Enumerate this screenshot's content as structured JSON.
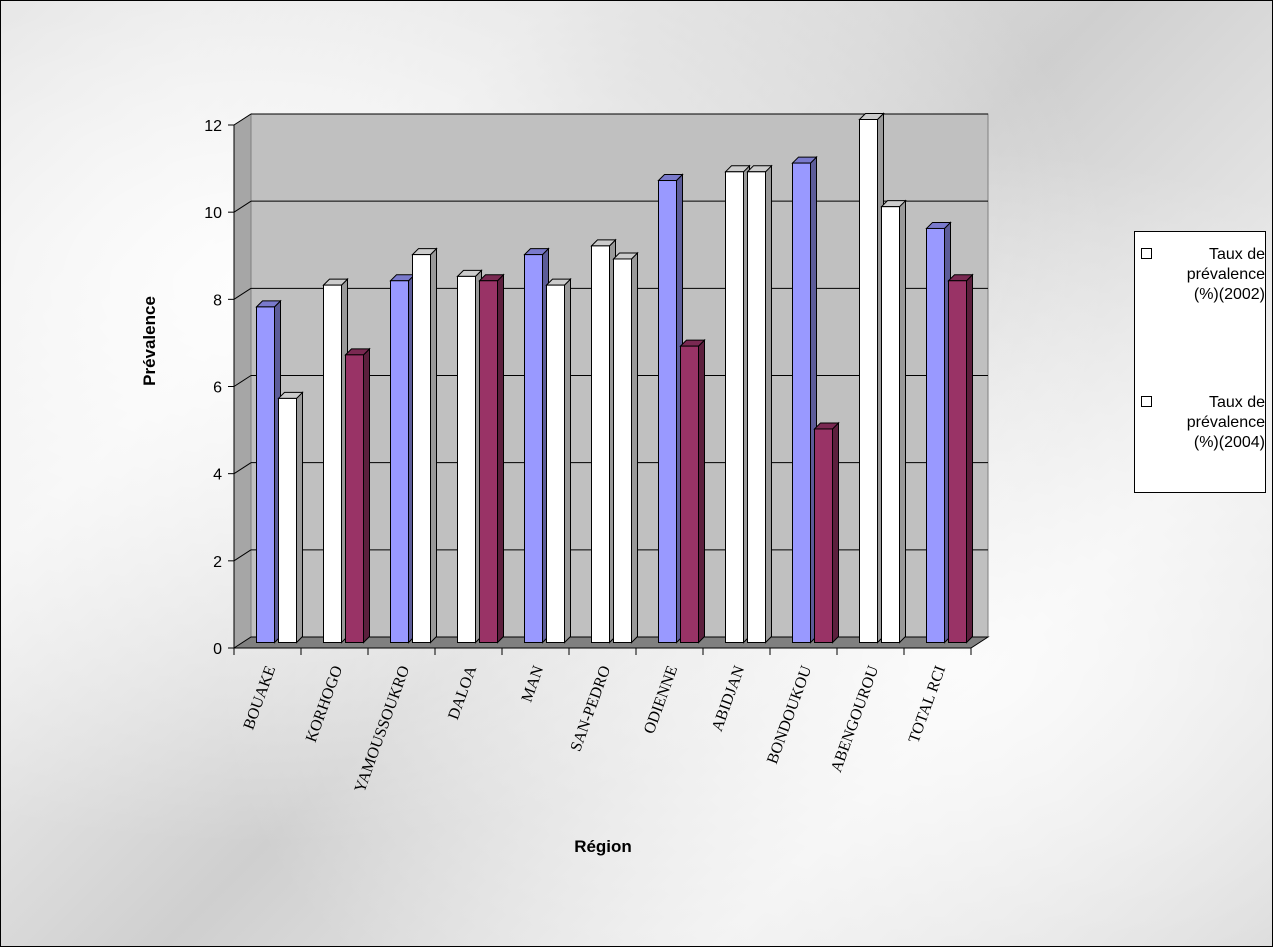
{
  "chart_data": {
    "type": "bar",
    "title": "",
    "xlabel": "Région",
    "ylabel": "Prévalence",
    "ylim": [
      0,
      12
    ],
    "yticks": [
      0,
      2,
      4,
      6,
      8,
      10,
      12
    ],
    "grid": true,
    "legend_position": "right",
    "categories": [
      "BOUAKE",
      "KORHOGO",
      "YAMOUSSOUKRO",
      "DALOA",
      "MAN",
      "SAN-PEDRO",
      "ODIENNE",
      "ABIDJAN",
      "BONDOUKOU",
      "ABENGOUROU",
      "TOTAL RCI"
    ],
    "series": [
      {
        "name": "Taux de prévalence (%)(2002)",
        "values": [
          7.7,
          8.2,
          8.3,
          8.4,
          8.9,
          9.1,
          10.6,
          10.8,
          11.0,
          12.0,
          9.5
        ],
        "fills": [
          "#9999ff",
          "#ffffff",
          "#9999ff",
          "#ffffff",
          "#9999ff",
          "#ffffff",
          "#9999ff",
          "#ffffff",
          "#9999ff",
          "#ffffff",
          "#9999ff"
        ]
      },
      {
        "name": "Taux de prévalence (%)(2004)",
        "values": [
          5.6,
          6.6,
          8.9,
          8.3,
          8.2,
          8.8,
          6.8,
          10.8,
          4.9,
          10.0,
          8.3
        ],
        "fills": [
          "#ffffff",
          "#993366",
          "#ffffff",
          "#993366",
          "#ffffff",
          "#ffffff",
          "#993366",
          "#ffffff",
          "#993366",
          "#ffffff",
          "#993366"
        ]
      }
    ],
    "colors": {
      "plot_wall": "#c0c0c0",
      "floor": "#808080",
      "blue": "#9999ff",
      "maroon": "#993366"
    }
  },
  "legend": {
    "items": [
      {
        "label": "Taux de prévalence (%)(2002)",
        "lines": [
          "Taux de",
          "prévalence",
          "(%)(2002)"
        ]
      },
      {
        "label": "Taux de prévalence (%)(2004)",
        "lines": [
          "Taux de",
          "prévalence",
          "(%)(2004)"
        ]
      }
    ]
  }
}
